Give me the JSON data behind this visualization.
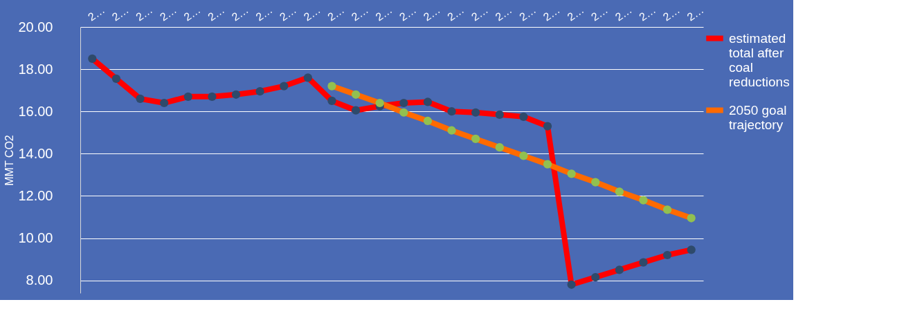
{
  "chart_data": {
    "type": "line",
    "ylabel": "MMT CO2",
    "categories": [
      "2…",
      "2…",
      "2…",
      "2…",
      "2…",
      "2…",
      "2…",
      "2…",
      "2…",
      "2…",
      "2…",
      "2…",
      "2…",
      "2…",
      "2…",
      "2…",
      "2…",
      "2…",
      "2…",
      "2…",
      "2…",
      "2…",
      "2…",
      "2…",
      "2…",
      "2…"
    ],
    "series": [
      {
        "name": "estimated total after coal reductions",
        "color": "#ff0000",
        "values": [
          18.5,
          17.55,
          16.6,
          16.4,
          16.7,
          16.7,
          16.8,
          16.95,
          17.2,
          17.6,
          16.5,
          16.05,
          16.25,
          16.4,
          16.45,
          16.0,
          15.95,
          15.85,
          15.75,
          15.3,
          7.8,
          8.15,
          8.5,
          8.85,
          9.2,
          9.45
        ]
      },
      {
        "name": "2050 goal trajectory",
        "color": "#ff6a00",
        "values": [
          null,
          null,
          null,
          null,
          null,
          null,
          null,
          null,
          null,
          null,
          17.2,
          16.8,
          16.4,
          15.95,
          15.55,
          15.1,
          14.7,
          14.3,
          13.9,
          13.5,
          13.05,
          12.65,
          12.2,
          11.8,
          11.35,
          10.95
        ]
      }
    ],
    "ylim": [
      7.4,
      20
    ],
    "yticks": [
      {
        "value": 8,
        "label": "8.00"
      },
      {
        "value": 10,
        "label": "10.00"
      },
      {
        "value": 12,
        "label": "12.00"
      },
      {
        "value": 14,
        "label": "14.00"
      },
      {
        "value": 16,
        "label": "16.00"
      },
      {
        "value": 18,
        "label": "18.00"
      },
      {
        "value": 20,
        "label": "20.00"
      }
    ],
    "grid": "y",
    "legend": "right",
    "marker": "circle",
    "line_style": "solid"
  }
}
